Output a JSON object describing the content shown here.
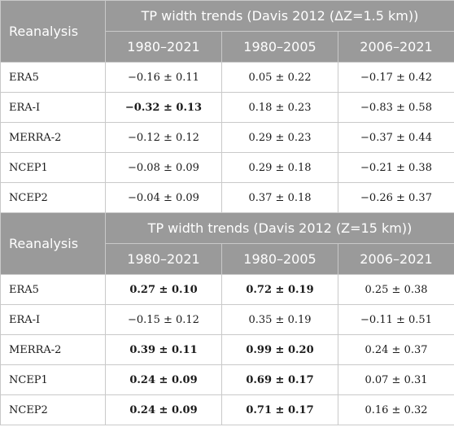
{
  "sections": [
    {
      "corner_label": "Reanalysis",
      "group_title": "TP width trends (Davis 2012 (ΔZ=1.5 km))",
      "periods": [
        "1980–2021",
        "1980–2005",
        "2006–2021"
      ],
      "rows": [
        {
          "name": "ERA5",
          "values": [
            "−0.16 ± 0.11",
            "0.05 ± 0.22",
            "−0.17 ± 0.42"
          ],
          "bold": [
            false,
            false,
            false
          ]
        },
        {
          "name": "ERA-I",
          "values": [
            "−0.32 ± 0.13",
            "0.18 ± 0.23",
            "−0.83 ± 0.58"
          ],
          "bold": [
            true,
            false,
            false
          ]
        },
        {
          "name": "MERRA-2",
          "values": [
            "−0.12 ± 0.12",
            "0.29 ± 0.23",
            "−0.37 ± 0.44"
          ],
          "bold": [
            false,
            false,
            false
          ]
        },
        {
          "name": "NCEP1",
          "values": [
            "−0.08 ± 0.09",
            "0.29 ± 0.18",
            "−0.21 ± 0.38"
          ],
          "bold": [
            false,
            false,
            false
          ]
        },
        {
          "name": "NCEP2",
          "values": [
            "−0.04 ± 0.09",
            "0.37 ± 0.18",
            "−0.26 ± 0.37"
          ],
          "bold": [
            false,
            false,
            false
          ]
        }
      ]
    },
    {
      "corner_label": "Reanalysis",
      "group_title": "TP width trends (Davis 2012 (Z=15 km))",
      "periods": [
        "1980–2021",
        "1980–2005",
        "2006–2021"
      ],
      "rows": [
        {
          "name": "ERA5",
          "values": [
            "0.27 ± 0.10",
            "0.72 ± 0.19",
            "0.25 ± 0.38"
          ],
          "bold": [
            true,
            true,
            false
          ]
        },
        {
          "name": "ERA-I",
          "values": [
            "−0.15 ± 0.12",
            "0.35 ± 0.19",
            "−0.11 ± 0.51"
          ],
          "bold": [
            false,
            false,
            false
          ]
        },
        {
          "name": "MERRA-2",
          "values": [
            "0.39 ± 0.11",
            "0.99 ± 0.20",
            "0.24 ± 0.37"
          ],
          "bold": [
            true,
            true,
            false
          ]
        },
        {
          "name": "NCEP1",
          "values": [
            "0.24 ± 0.09",
            "0.69 ± 0.17",
            "0.07 ± 0.31"
          ],
          "bold": [
            true,
            true,
            false
          ]
        },
        {
          "name": "NCEP2",
          "values": [
            "0.24 ± 0.09",
            "0.71 ± 0.17",
            "0.16 ± 0.32"
          ],
          "bold": [
            true,
            true,
            false
          ]
        }
      ]
    }
  ],
  "colors": {
    "header_bg": "#9a9a9a",
    "header_text": "#ffffff",
    "grid_line": "#c9c9c9",
    "body_text": "#1a1a1a"
  }
}
